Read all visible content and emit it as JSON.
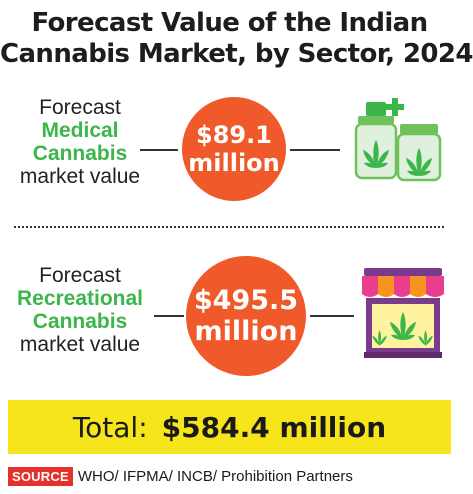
{
  "title_line1": "Forecast Value of the Indian",
  "title_line2": "Cannabis Market, by Sector, 2024",
  "medical": {
    "line1": "Forecast",
    "line2": "Medical",
    "line3": "Cannabis",
    "line4": "market value",
    "value_line1": "$89.1",
    "value_line2": "million",
    "icon": "medicine-jars-cannabis-icon"
  },
  "recreational": {
    "line1": "Forecast",
    "line2": "Recreational",
    "line3": "Cannabis",
    "line4": "market value",
    "value_line1": "$495.5",
    "value_line2": "million",
    "icon": "storefront-cannabis-icon"
  },
  "total": {
    "label": "Total:",
    "amount": "$584.4 million"
  },
  "source": {
    "tag": "SOURCE",
    "text": "WHO/ IFPMA/ INCB/ Prohibition Partners"
  },
  "colors": {
    "circle": "#f0592a",
    "highlight_text": "#3cb54a",
    "total_band": "#f7e51b",
    "source_tag": "#e4322b"
  },
  "chart_data": {
    "type": "table",
    "categories": [
      "Medical Cannabis",
      "Recreational Cannabis"
    ],
    "values": [
      89.1,
      495.5
    ],
    "unit": "million USD",
    "total": 584.4,
    "title": "Forecast Value of the Indian Cannabis Market, by Sector, 2024"
  }
}
